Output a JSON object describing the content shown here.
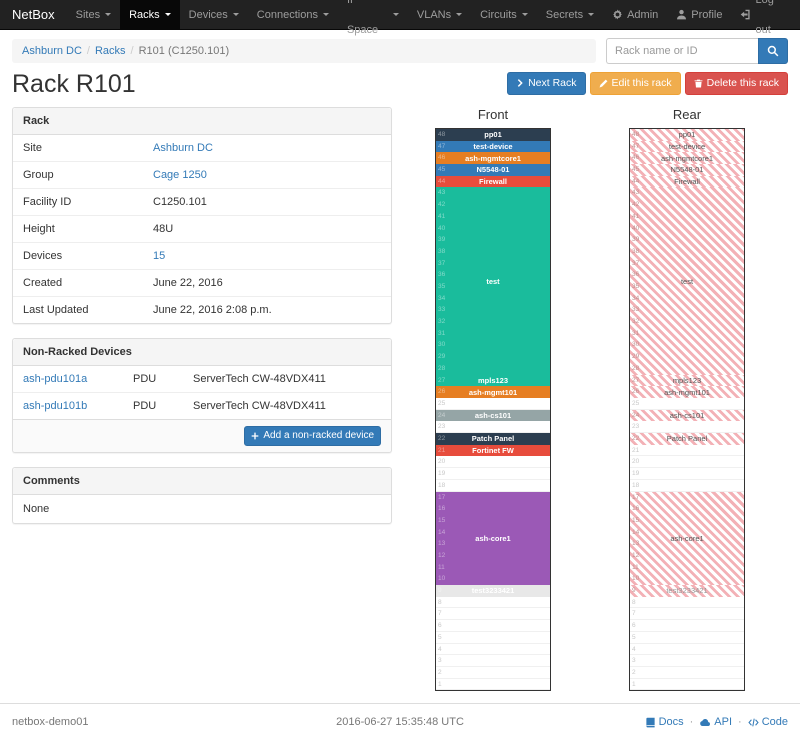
{
  "navbar": {
    "brand": "NetBox",
    "items": [
      {
        "label": "Sites",
        "caret": true,
        "active": false
      },
      {
        "label": "Racks",
        "caret": true,
        "active": true
      },
      {
        "label": "Devices",
        "caret": true,
        "active": false
      },
      {
        "label": "Connections",
        "caret": true,
        "active": false
      },
      {
        "label": "IP Space",
        "caret": true,
        "active": false
      },
      {
        "label": "VLANs",
        "caret": true,
        "active": false
      },
      {
        "label": "Circuits",
        "caret": true,
        "active": false
      },
      {
        "label": "Secrets",
        "caret": true,
        "active": false
      }
    ],
    "right": [
      {
        "label": "Admin",
        "icon": "gear"
      },
      {
        "label": "Profile",
        "icon": "user"
      },
      {
        "label": "Log out",
        "icon": "logout"
      }
    ]
  },
  "breadcrumb": {
    "items": [
      {
        "label": "Ashburn DC",
        "link": true
      },
      {
        "label": "Racks",
        "link": true
      },
      {
        "label": "R101 (C1250.101)",
        "link": false
      }
    ]
  },
  "search": {
    "placeholder": "Rack name or ID"
  },
  "page": {
    "title": "Rack R101"
  },
  "actions": [
    {
      "label": "Next Rack",
      "style": "primary",
      "icon": "chevron-right"
    },
    {
      "label": "Edit this rack",
      "style": "warning",
      "icon": "pencil"
    },
    {
      "label": "Delete this rack",
      "style": "danger",
      "icon": "trash"
    }
  ],
  "rack_panel": {
    "title": "Rack",
    "rows": [
      {
        "label": "Site",
        "value": "Ashburn DC",
        "link": true
      },
      {
        "label": "Group",
        "value": "Cage 1250",
        "link": true
      },
      {
        "label": "Facility ID",
        "value": "C1250.101",
        "link": false
      },
      {
        "label": "Height",
        "value": "48U",
        "link": false
      },
      {
        "label": "Devices",
        "value": "15",
        "link": true
      },
      {
        "label": "Created",
        "value": "June 22, 2016",
        "link": false
      },
      {
        "label": "Last Updated",
        "value": "June 22, 2016 2:08 p.m.",
        "link": false
      }
    ]
  },
  "nonracked_panel": {
    "title": "Non-Racked Devices",
    "rows": [
      {
        "name": "ash-pdu101a",
        "role": "PDU",
        "model": "ServerTech CW-48VDX411"
      },
      {
        "name": "ash-pdu101b",
        "role": "PDU",
        "model": "ServerTech CW-48VDX411"
      }
    ],
    "add_button": "Add a non-racked device"
  },
  "comments_panel": {
    "title": "Comments",
    "body": "None"
  },
  "elevations": {
    "front": {
      "title": "Front",
      "units": [
        {
          "top_u": 48,
          "span": 1,
          "label": "pp01",
          "bg": "#2c3e50",
          "fg": "#ffffff"
        },
        {
          "top_u": 47,
          "span": 1,
          "label": "test-device",
          "bg": "#337ab7",
          "fg": "#ffffff"
        },
        {
          "top_u": 46,
          "span": 1,
          "label": "ash-mgmtcore1",
          "bg": "#e67e22",
          "fg": "#ffffff"
        },
        {
          "top_u": 45,
          "span": 1,
          "label": "N5548-01",
          "bg": "#337ab7",
          "fg": "#ffffff"
        },
        {
          "top_u": 44,
          "span": 1,
          "label": "Firewall",
          "bg": "#e74c3c",
          "fg": "#ffffff"
        },
        {
          "top_u": 43,
          "span": 16,
          "label": "test",
          "bg": "#1abc9c",
          "fg": "#ffffff"
        },
        {
          "top_u": 27,
          "span": 1,
          "label": "mpls123",
          "bg": "#1abc9c",
          "fg": "#ffffff"
        },
        {
          "top_u": 26,
          "span": 1,
          "label": "ash-mgmt101",
          "bg": "#e67e22",
          "fg": "#ffffff"
        },
        {
          "top_u": 25,
          "empty": true
        },
        {
          "top_u": 24,
          "span": 1,
          "label": "ash-cs101",
          "bg": "#95a5a6",
          "fg": "#ffffff"
        },
        {
          "top_u": 23,
          "empty": true
        },
        {
          "top_u": 22,
          "span": 1,
          "label": "Patch Panel",
          "bg": "#2c3e50",
          "fg": "#ffffff"
        },
        {
          "top_u": 21,
          "span": 1,
          "label": "Fortinet FW",
          "bg": "#e74c3c",
          "fg": "#ffffff"
        },
        {
          "top_u": 20,
          "empty": true
        },
        {
          "top_u": 19,
          "empty": true
        },
        {
          "top_u": 18,
          "empty": true
        },
        {
          "top_u": 17,
          "span": 8,
          "label": "ash-core1",
          "bg": "#9b59b6",
          "fg": "#ffffff"
        },
        {
          "top_u": 9,
          "span": 1,
          "label": "test3233421",
          "bg": "#e8e8e8",
          "fg": "#ffffff"
        },
        {
          "top_u": 8,
          "empty": true
        },
        {
          "top_u": 7,
          "empty": true
        },
        {
          "top_u": 6,
          "empty": true
        },
        {
          "top_u": 5,
          "empty": true
        },
        {
          "top_u": 4,
          "empty": true
        },
        {
          "top_u": 3,
          "empty": true
        },
        {
          "top_u": 2,
          "empty": true
        },
        {
          "top_u": 1,
          "empty": true
        }
      ]
    },
    "rear": {
      "title": "Rear",
      "units": [
        {
          "top_u": 48,
          "span": 1,
          "label": "pp01",
          "striped": true
        },
        {
          "top_u": 47,
          "span": 1,
          "label": "test-device",
          "striped": true
        },
        {
          "top_u": 46,
          "span": 1,
          "label": "ash-mgmtcore1",
          "striped": true
        },
        {
          "top_u": 45,
          "span": 1,
          "label": "N5548-01",
          "striped": true
        },
        {
          "top_u": 44,
          "span": 1,
          "label": "Firewall",
          "striped": true
        },
        {
          "top_u": 43,
          "span": 16,
          "label": "test",
          "striped": true
        },
        {
          "top_u": 27,
          "span": 1,
          "label": "mpls123",
          "striped": true
        },
        {
          "top_u": 26,
          "span": 1,
          "label": "ash-mgmt101",
          "striped": true
        },
        {
          "top_u": 25,
          "empty": true
        },
        {
          "top_u": 24,
          "span": 1,
          "label": "ash-cs101",
          "striped": true
        },
        {
          "top_u": 23,
          "empty": true
        },
        {
          "top_u": 22,
          "span": 1,
          "label": "Patch Panel",
          "striped": true
        },
        {
          "top_u": 21,
          "empty": true
        },
        {
          "top_u": 20,
          "empty": true
        },
        {
          "top_u": 19,
          "empty": true
        },
        {
          "top_u": 18,
          "empty": true
        },
        {
          "top_u": 17,
          "span": 8,
          "label": "ash-core1",
          "striped": true
        },
        {
          "top_u": 9,
          "span": 1,
          "label": "test3233421",
          "striped": true,
          "fg": "#999999"
        },
        {
          "top_u": 8,
          "empty": true
        },
        {
          "top_u": 7,
          "empty": true
        },
        {
          "top_u": 6,
          "empty": true
        },
        {
          "top_u": 5,
          "empty": true
        },
        {
          "top_u": 4,
          "empty": true
        },
        {
          "top_u": 3,
          "empty": true
        },
        {
          "top_u": 2,
          "empty": true
        },
        {
          "top_u": 1,
          "empty": true
        }
      ]
    }
  },
  "footer": {
    "hostname": "netbox-demo01",
    "timestamp": "2016-06-27 15:35:48 UTC",
    "links": [
      {
        "label": "Docs",
        "icon": "book"
      },
      {
        "label": "API",
        "icon": "cloud"
      },
      {
        "label": "Code",
        "icon": "code"
      }
    ]
  },
  "colors": {
    "accent": "#337ab7",
    "warning": "#f0ad4e",
    "danger": "#d9534f",
    "navbar_bg": "#222222",
    "rear_stripe": "#f3b1b6"
  }
}
